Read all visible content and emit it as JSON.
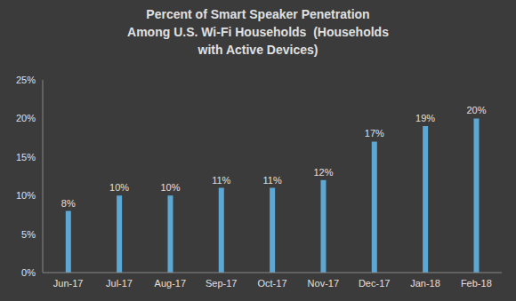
{
  "chart_data": {
    "type": "bar",
    "title": "Percent of Smart Speaker Penetration\nAmong U.S. Wi-Fi Households  (Households\nwith Active Devices)",
    "categories": [
      "Jun-17",
      "Jul-17",
      "Aug-17",
      "Sep-17",
      "Oct-17",
      "Nov-17",
      "Dec-17",
      "Jan-18",
      "Feb-18"
    ],
    "values": [
      8,
      10,
      10,
      11,
      11,
      12,
      17,
      19,
      20
    ],
    "value_labels": [
      "8%",
      "10%",
      "10%",
      "11%",
      "11%",
      "12%",
      "17%",
      "19%",
      "20%"
    ],
    "color": "#5ba8d4",
    "ylim": [
      0,
      25
    ],
    "yticks": [
      {
        "value": 0,
        "label": "0%"
      },
      {
        "value": 5,
        "label": "5%"
      },
      {
        "value": 10,
        "label": "10%"
      },
      {
        "value": 15,
        "label": "15%"
      },
      {
        "value": 20,
        "label": "20%"
      },
      {
        "value": 25,
        "label": "25%"
      }
    ],
    "data_labels": true,
    "grid": false
  }
}
